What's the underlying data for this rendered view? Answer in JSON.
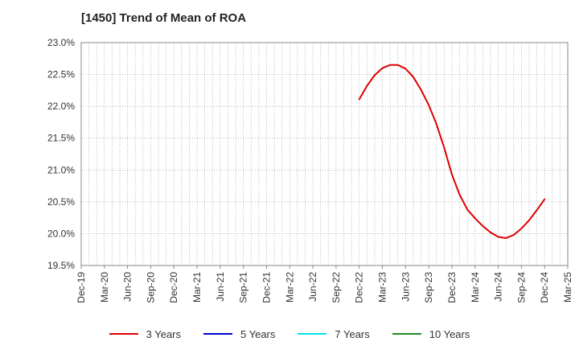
{
  "chart_data": {
    "type": "line",
    "title": "[1450]  Trend of Mean of ROA",
    "xlabel": "",
    "ylabel": "",
    "ylim": [
      19.5,
      23.0
    ],
    "y_ticks": [
      "19.5%",
      "20.0%",
      "20.5%",
      "21.0%",
      "21.5%",
      "22.0%",
      "22.5%",
      "23.0%"
    ],
    "x_ticks": [
      "Dec-19",
      "Mar-20",
      "Jun-20",
      "Sep-20",
      "Dec-20",
      "Mar-21",
      "Jun-21",
      "Sep-21",
      "Dec-21",
      "Mar-22",
      "Jun-22",
      "Sep-22",
      "Dec-22",
      "Mar-23",
      "Jun-23",
      "Sep-23",
      "Dec-23",
      "Mar-24",
      "Jun-24",
      "Sep-24",
      "Dec-24",
      "Mar-25"
    ],
    "grid": true,
    "legend_position": "bottom",
    "series": [
      {
        "name": "3 Years",
        "color": "#dd0000",
        "x": [
          "Dec-22",
          "Jan-23",
          "Feb-23",
          "Mar-23",
          "Apr-23",
          "May-23",
          "Jun-23",
          "Jul-23",
          "Aug-23",
          "Sep-23",
          "Oct-23",
          "Nov-23",
          "Dec-23",
          "Jan-24",
          "Feb-24",
          "Mar-24",
          "Apr-24",
          "May-24",
          "Jun-24",
          "Jul-24",
          "Aug-24",
          "Sep-24",
          "Oct-24",
          "Nov-24",
          "Dec-24"
        ],
        "values": [
          22.11,
          22.32,
          22.49,
          22.6,
          22.65,
          22.65,
          22.59,
          22.46,
          22.26,
          22.02,
          21.72,
          21.35,
          20.93,
          20.61,
          20.38,
          20.24,
          20.12,
          20.02,
          19.95,
          19.93,
          19.98,
          20.08,
          20.21,
          20.37,
          20.54
        ]
      },
      {
        "name": "5 Years",
        "color": "#0000cc",
        "x": [],
        "values": []
      },
      {
        "name": "7 Years",
        "color": "#00e5ee",
        "x": [],
        "values": []
      },
      {
        "name": "10 Years",
        "color": "#228b22",
        "x": [],
        "values": []
      }
    ]
  }
}
